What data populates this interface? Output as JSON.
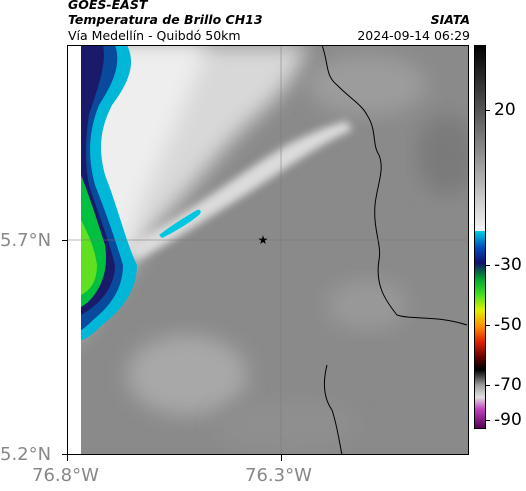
{
  "header": {
    "satellite": "GOES-EAST",
    "product": "Temperatura de Brillo CH13",
    "source": "SIATA",
    "location": "Vía Medellín - Quibdó 50km",
    "datetime": "2024-09-14 06:29"
  },
  "axes": {
    "x_ticks": [
      "76.8°W",
      "76.3°W"
    ],
    "y_ticks": [
      "5.7°N",
      "5.2°N"
    ]
  },
  "colorbar": {
    "ticks": [
      "20",
      "-30",
      "-50",
      "-70",
      "-90"
    ]
  },
  "map": {
    "marker": "star",
    "marker_color": "#000000",
    "background_color": "#8a8a8a"
  }
}
